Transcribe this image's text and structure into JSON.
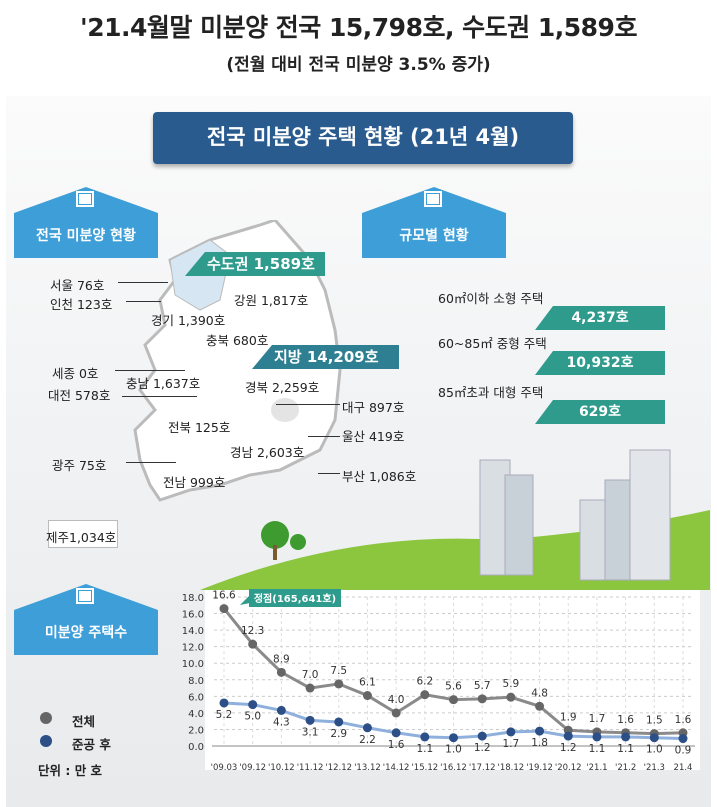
{
  "title": "'21.4월말 미분양 전국 15,798호, 수도권 1,589호",
  "subtitle": "(전월 대비 전국 미분양 3.5% 증가)",
  "banner": "전국 미분양 주택 현황 (21년 4월)",
  "sections": {
    "regional": "전국 미분양 현황",
    "size": "규모별 현황",
    "count": "미분양 주택수"
  },
  "regions": {
    "capital_tag": "수도권 1,589호",
    "local_tag": "지방 14,209호",
    "seoul": "서울 76호",
    "incheon": "인천 123호",
    "gangwon": "강원 1,817호",
    "gyeonggi": "경기 1,390호",
    "chungbuk": "충북 680호",
    "sejong": "세종 0호",
    "chungnam": "충남 1,637호",
    "daejeon": "대전 578호",
    "gyeongbuk": "경북  2,259호",
    "daegu": "대구 897호",
    "jeonbuk": "전북 125호",
    "ulsan": "울산 419호",
    "gwangju": "광주 75호",
    "gyeongnam": "경남  2,603호",
    "busan": "부산 1,086호",
    "jeonnam": "전남 999호",
    "jeju": "제주1,034호"
  },
  "sizes": [
    {
      "label": "60㎡이하 소형 주택",
      "value": "4,237호"
    },
    {
      "label": "60~85㎡ 중형 주택",
      "value": "10,932호"
    },
    {
      "label": "85㎡초과 대형 주택",
      "value": "629호"
    }
  ],
  "legend": {
    "total": "전체",
    "completed": "준공 후",
    "unit": "단위 : 만 호"
  },
  "colors": {
    "total": "#666666",
    "completed": "#2b4f86",
    "teal": "#2e9b8c",
    "blue": "#3d9ed8",
    "navy": "#2a5b8f"
  },
  "chart_data": {
    "type": "line",
    "title": "미분양 주택수",
    "ylabel": "만 호",
    "ylim": [
      0,
      18
    ],
    "yticks": [
      "0.0",
      "2.0",
      "4.0",
      "6.0",
      "8.0",
      "10.0",
      "12.0",
      "14.0",
      "16.0",
      "18.0"
    ],
    "categories": [
      "'09.03",
      "'09.12",
      "'10.12",
      "'11.12",
      "'12.12",
      "'13.12",
      "'14.12",
      "'15.12",
      "'16.12",
      "'17.12",
      "'18.12",
      "'19.12",
      "'20.12",
      "'21.1",
      "'21.2",
      "'21.3",
      "21.4"
    ],
    "series": [
      {
        "name": "전체",
        "values": [
          16.6,
          12.3,
          8.9,
          7.0,
          7.5,
          6.1,
          4.0,
          6.2,
          5.6,
          5.7,
          5.9,
          4.8,
          1.9,
          1.7,
          1.6,
          1.5,
          1.6
        ]
      },
      {
        "name": "준공 후",
        "values": [
          5.2,
          5.0,
          4.3,
          3.1,
          2.9,
          2.2,
          1.6,
          1.1,
          1.0,
          1.2,
          1.7,
          1.8,
          1.2,
          1.1,
          1.1,
          1.0,
          0.9
        ]
      }
    ],
    "annotation": "정점(165,641호)",
    "grid": true,
    "legend": "bottom-left"
  }
}
